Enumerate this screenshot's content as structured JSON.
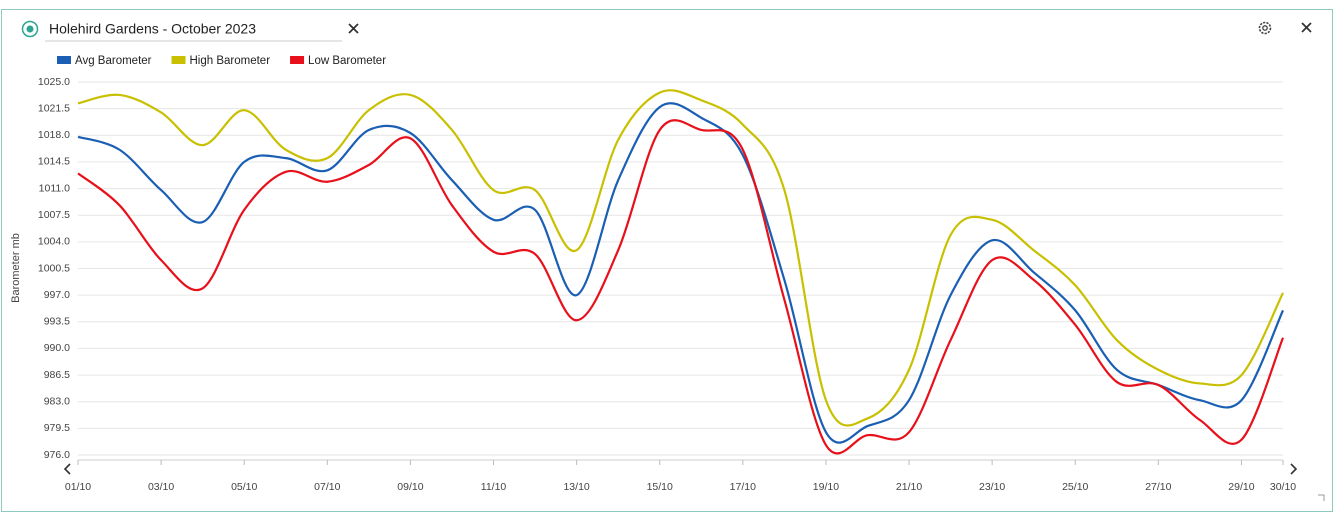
{
  "chart_data": {
    "type": "line",
    "title": "Holehird Gardens - October 2023",
    "y_label": "Barometer mb",
    "categories": [
      "01/10",
      null,
      "03/10",
      null,
      "05/10",
      null,
      "07/10",
      null,
      "09/10",
      null,
      "11/10",
      null,
      "13/10",
      null,
      "15/10",
      null,
      "17/10",
      null,
      "19/10",
      null,
      "21/10",
      null,
      "23/10",
      null,
      "25/10",
      null,
      "27/10",
      null,
      "29/10",
      "30/10"
    ],
    "series": [
      {
        "name": "Avg Barometer",
        "color": "#1a5fb4",
        "values": [
          1017.8,
          1016.1,
          1010.8,
          1006.6,
          1014.5,
          1015.0,
          1013.4,
          1018.7,
          1018.3,
          1012.1,
          1006.9,
          1008.2,
          997.0,
          1012.1,
          1021.7,
          1020.3,
          1015.4,
          999.0,
          979.0,
          979.8,
          983.2,
          997.0,
          1004.2,
          1000.0,
          995.0,
          987.2,
          985.2,
          983.2,
          983.2,
          995.0
        ]
      },
      {
        "name": "High Barometer",
        "color": "#c8c000",
        "values": [
          1022.2,
          1023.3,
          1021.0,
          1016.7,
          1021.3,
          1016.1,
          1015.0,
          1021.3,
          1023.3,
          1018.7,
          1010.8,
          1010.8,
          1002.9,
          1017.4,
          1023.6,
          1022.6,
          1019.4,
          1010.8,
          983.2,
          980.8,
          987.2,
          1004.9,
          1006.9,
          1002.9,
          998.3,
          991.1,
          987.2,
          985.4,
          986.5,
          997.3
        ]
      },
      {
        "name": "Low Barometer",
        "color": "#e8101a",
        "values": [
          1013.0,
          1008.8,
          1001.6,
          997.9,
          1008.2,
          1013.2,
          1011.9,
          1014.1,
          1017.6,
          1008.8,
          1002.7,
          1002.4,
          993.7,
          1002.9,
          1018.7,
          1018.7,
          1016.1,
          996.4,
          977.3,
          978.6,
          979.0,
          991.1,
          1001.6,
          999.0,
          993.1,
          985.6,
          985.2,
          980.6,
          978.0,
          991.4
        ]
      }
    ],
    "ylim": [
      976,
      1025
    ],
    "yticks": [
      {
        "value": 976,
        "label": "976.0"
      },
      979.5,
      {
        "value": 983,
        "label": "983.0"
      },
      986.5,
      {
        "value": 990,
        "label": "990.0"
      },
      993.5,
      {
        "value": 997,
        "label": "997.0"
      },
      1000.5,
      {
        "value": 1004,
        "label": "1004.0"
      },
      1007.5,
      {
        "value": 1011,
        "label": "1011.0"
      },
      1014.5,
      {
        "value": 1018,
        "label": "1018.0"
      },
      1021.5,
      {
        "value": 1025,
        "label": "1025.0"
      }
    ],
    "grid": true
  }
}
